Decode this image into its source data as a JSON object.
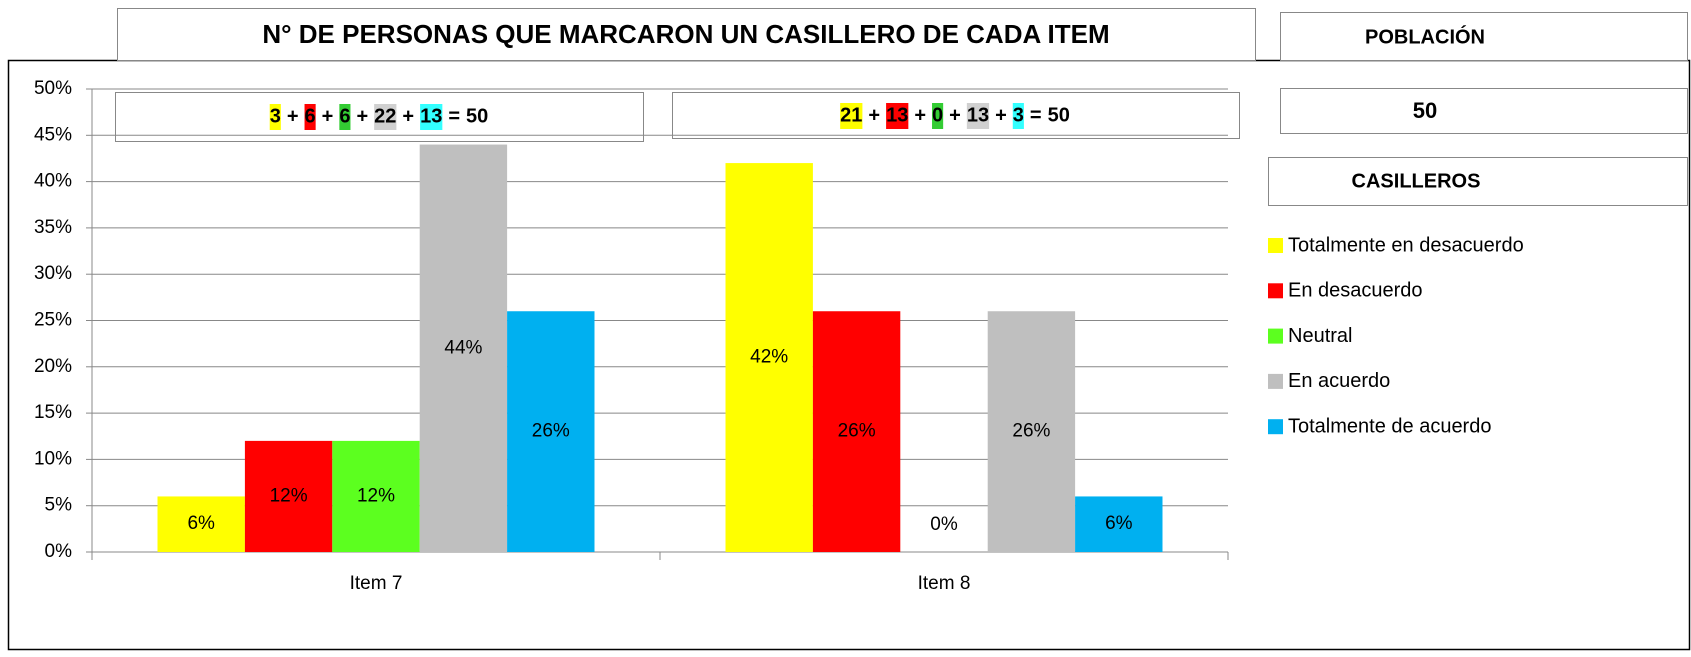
{
  "chart_data": {
    "type": "bar",
    "title": "N° DE PERSONAS QUE MARCARON UN CASILLERO DE CADA ITEM",
    "population_label": "POBLACIÓN",
    "population": 50,
    "boxes_label": "CASILLEROS",
    "categories": [
      "Item 7",
      "Item 8"
    ],
    "series": [
      {
        "name": "Totalmente en desacuerdo",
        "color": "#ffff00",
        "values": [
          6,
          42
        ],
        "value_labels": [
          "6%",
          "42%"
        ]
      },
      {
        "name": "En desacuerdo",
        "color": "#ff0000",
        "values": [
          12,
          26
        ],
        "value_labels": [
          "12%",
          "26%"
        ]
      },
      {
        "name": "Neutral",
        "color": "#5cff1f",
        "values": [
          12,
          0
        ],
        "value_labels": [
          "12%",
          "0%"
        ]
      },
      {
        "name": "En acuerdo",
        "color": "#bfbfbf",
        "values": [
          44,
          26
        ],
        "value_labels": [
          "44%",
          "26%"
        ]
      },
      {
        "name": "Totalmente de acuerdo",
        "color": "#00b0f0",
        "values": [
          26,
          6
        ],
        "value_labels": [
          "26%",
          "6%"
        ]
      }
    ],
    "highlight_colors": [
      "#ffff00",
      "#ff0000",
      "#33cc33",
      "#d0d0d0",
      "#33ffff"
    ],
    "annotations": [
      {
        "terms": [
          3,
          6,
          6,
          22,
          13
        ],
        "plus": "+",
        "equals": "=",
        "total": 50
      },
      {
        "terms": [
          21,
          13,
          0,
          13,
          3
        ],
        "plus": "+",
        "equals": "=",
        "total": 50
      }
    ],
    "ylim": [
      0,
      50
    ],
    "yticks": [
      {
        "value": 0,
        "label": "0%"
      },
      {
        "value": 5,
        "label": "5%"
      },
      {
        "value": 10,
        "label": "10%"
      },
      {
        "value": 15,
        "label": "15%"
      },
      {
        "value": 20,
        "label": "20%"
      },
      {
        "value": 25,
        "label": "25%"
      },
      {
        "value": 30,
        "label": "30%"
      },
      {
        "value": 35,
        "label": "35%"
      },
      {
        "value": 40,
        "label": "40%"
      },
      {
        "value": 45,
        "label": "45%"
      },
      {
        "value": 50,
        "label": "50%"
      }
    ],
    "grid": true,
    "legend": "right"
  }
}
